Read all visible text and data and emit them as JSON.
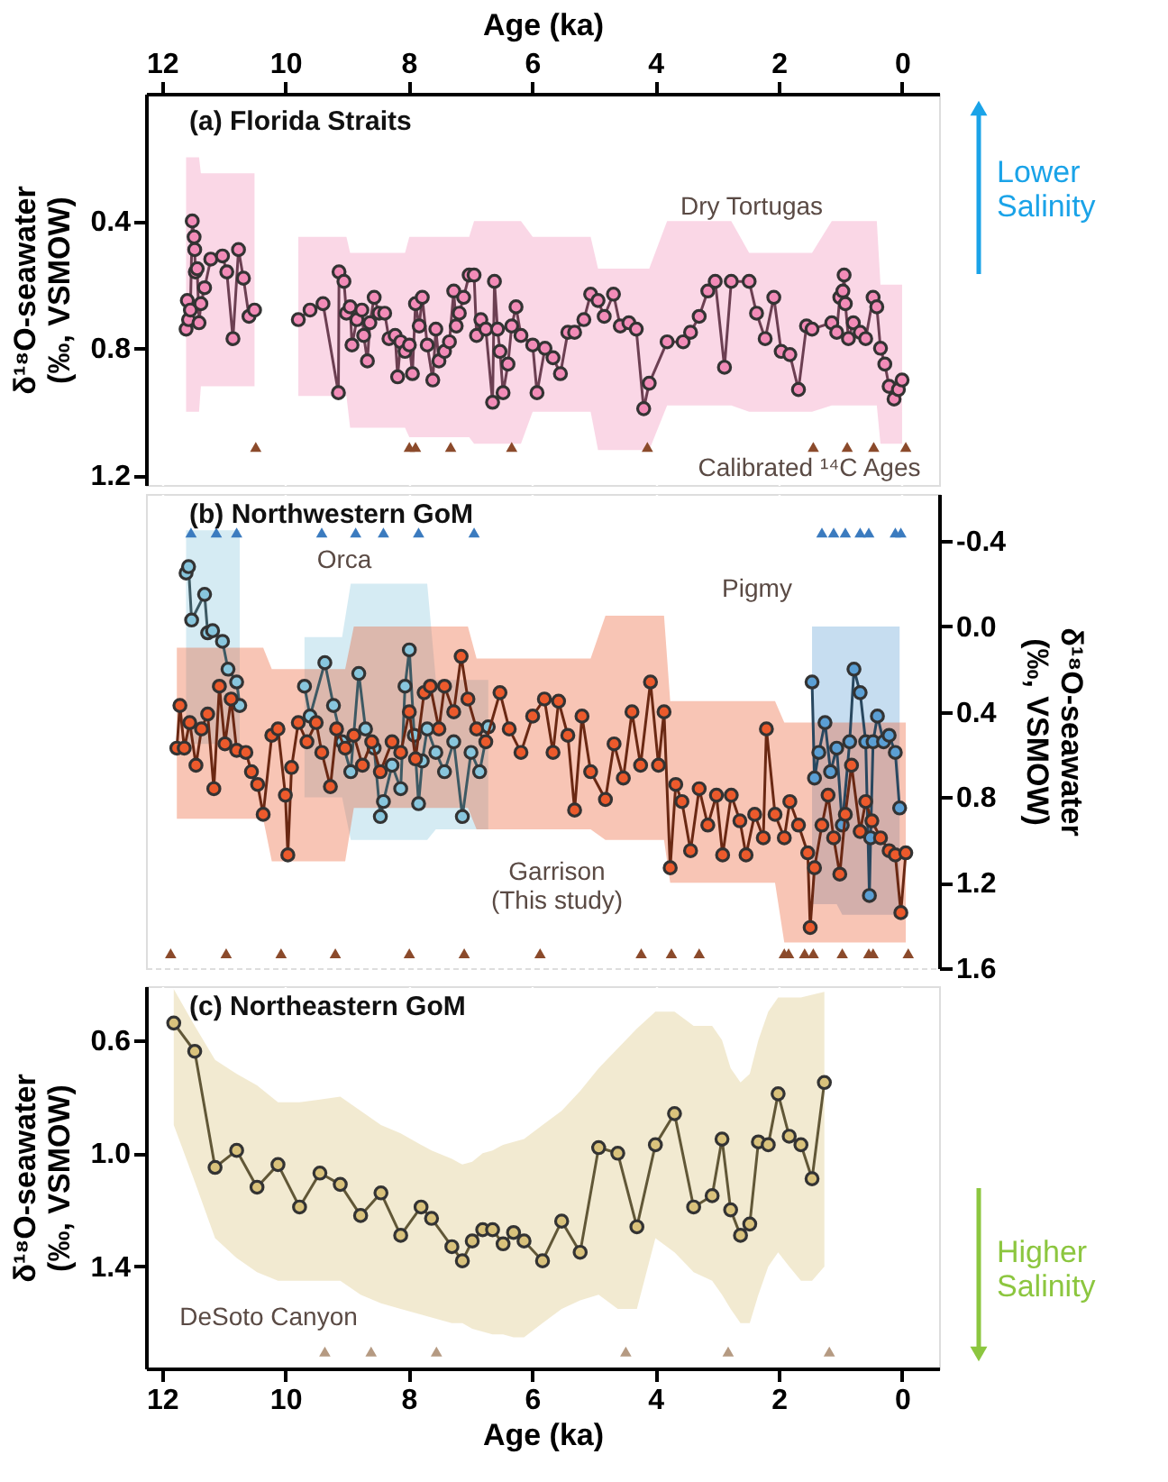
{
  "chart_data": [
    {
      "type": "line",
      "title": "(a) Florida Straits",
      "xlabel": "Age (ka)",
      "xlim": [
        12.26,
        -0.6
      ],
      "xticks": [
        12,
        10,
        8,
        6,
        4,
        2,
        0
      ],
      "ylabel": "δ¹⁸O-seawater\n(‰, VSMOW)",
      "ylim": [
        1.23,
        0.0
      ],
      "yticks": [
        0.4,
        0.8,
        1.2
      ],
      "grid": true,
      "marker": "circle",
      "series": [
        {
          "color": "#f28cb8",
          "x": [
            11.61,
            11.59,
            11.57,
            11.54,
            11.51,
            11.48,
            11.47,
            11.46,
            11.43,
            11.4,
            11.37,
            11.31,
            11.21,
            11.02,
            10.95,
            10.85,
            10.76,
            10.68,
            10.59,
            10.5,
            10.1,
            9.79,
            9.6,
            9.39,
            9.14,
            9.13,
            9.05,
            9.01,
            8.95,
            8.92,
            8.84,
            8.76,
            8.73,
            8.67,
            8.63,
            8.56,
            8.48,
            8.39,
            8.32,
            8.22,
            8.18,
            8.13,
            8.06,
            7.99,
            7.94,
            7.89,
            7.83,
            7.78,
            7.7,
            7.61,
            7.56,
            7.51,
            7.42,
            7.34,
            7.27,
            7.23,
            7.18,
            7.11,
            7.02,
            6.94,
            6.9,
            6.83,
            6.75,
            6.64,
            6.61,
            6.56,
            6.52,
            6.47,
            6.39,
            6.33,
            6.26,
            6.18,
            5.99,
            5.92,
            5.79,
            5.66,
            5.54,
            5.42,
            5.31,
            5.16,
            5.05,
            4.93,
            4.83,
            4.68,
            4.57,
            4.43,
            4.31,
            4.19,
            4.1,
            3.81,
            3.55,
            3.43,
            3.29,
            3.15,
            3.03,
            2.88,
            2.77,
            2.48,
            2.36,
            2.22,
            2.08,
            1.96,
            1.82,
            1.68,
            1.55,
            1.46,
            1.14,
            1.06,
            1.01,
            0.96,
            0.94,
            0.92,
            0.87,
            0.79,
            0.68,
            0.59,
            0.47,
            0.41,
            0.35,
            0.28,
            0.21,
            0.13,
            0.06,
            0.0
          ],
          "values": [
            0.74,
            0.65,
            0.71,
            0.68,
            0.4,
            0.45,
            0.49,
            0.56,
            0.55,
            0.72,
            0.66,
            0.61,
            0.52,
            0.51,
            0.56,
            0.77,
            0.49,
            0.58,
            0.7,
            0.68,
            null,
            0.71,
            0.68,
            0.66,
            0.94,
            0.56,
            0.59,
            0.69,
            0.67,
            0.79,
            0.71,
            0.68,
            0.76,
            0.84,
            0.72,
            0.64,
            0.69,
            0.69,
            0.77,
            0.76,
            0.89,
            0.78,
            0.81,
            0.79,
            0.88,
            0.66,
            0.73,
            0.64,
            0.79,
            0.9,
            0.74,
            0.84,
            0.81,
            0.78,
            0.62,
            0.73,
            0.69,
            0.64,
            0.57,
            0.57,
            0.76,
            0.71,
            0.74,
            0.97,
            0.59,
            0.74,
            0.81,
            0.94,
            0.85,
            0.73,
            0.67,
            0.76,
            0.79,
            0.94,
            0.8,
            0.83,
            0.88,
            0.75,
            0.75,
            0.71,
            0.63,
            0.65,
            0.7,
            0.63,
            0.73,
            0.72,
            0.74,
            0.99,
            0.91,
            0.78,
            0.78,
            0.75,
            0.7,
            0.62,
            0.59,
            0.86,
            0.59,
            0.59,
            0.69,
            0.77,
            0.64,
            0.81,
            0.82,
            0.93,
            0.73,
            0.74,
            0.72,
            0.75,
            0.64,
            0.62,
            0.57,
            0.66,
            0.77,
            0.72,
            0.75,
            0.77,
            0.64,
            0.67,
            0.8,
            0.85,
            0.92,
            0.96,
            0.93,
            0.9
          ],
          "lower": [
            0.2,
            0.2,
            0.2,
            0.2,
            0.2,
            0.2,
            0.2,
            0.2,
            0.2,
            0.2,
            0.25,
            0.25,
            0.25,
            0.25,
            0.25,
            0.25,
            0.25,
            0.25,
            0.25,
            0.25,
            null,
            0.45,
            0.45,
            0.45,
            0.45,
            0.45,
            0.45,
            0.45,
            0.5,
            0.5,
            0.5,
            0.5,
            0.5,
            0.5,
            0.5,
            0.5,
            0.5,
            0.5,
            0.5,
            0.5,
            0.5,
            0.5,
            0.5,
            0.45,
            0.45,
            0.45,
            0.45,
            0.45,
            0.45,
            0.45,
            0.45,
            0.45,
            0.45,
            0.45,
            0.45,
            0.45,
            0.45,
            0.45,
            0.45,
            0.4,
            0.4,
            0.4,
            0.4,
            0.4,
            0.4,
            0.4,
            0.4,
            0.4,
            0.4,
            0.4,
            0.4,
            0.4,
            0.45,
            0.45,
            0.45,
            0.45,
            0.45,
            0.45,
            0.45,
            0.45,
            0.45,
            0.55,
            0.55,
            0.55,
            0.55,
            0.55,
            0.55,
            0.55,
            0.55,
            0.4,
            0.4,
            0.4,
            0.4,
            0.4,
            0.4,
            0.4,
            0.4,
            0.5,
            0.5,
            0.5,
            0.5,
            0.5,
            0.5,
            0.5,
            0.5,
            0.5,
            0.4,
            0.4,
            0.4,
            0.4,
            0.4,
            0.4,
            0.4,
            0.4,
            0.4,
            0.4,
            0.4,
            0.4,
            0.6,
            0.6,
            0.6,
            0.6,
            0.6,
            0.6
          ],
          "upper": [
            1.0,
            1.0,
            1.0,
            1.0,
            1.0,
            1.0,
            1.0,
            1.0,
            1.0,
            1.0,
            0.92,
            0.92,
            0.92,
            0.92,
            0.92,
            0.92,
            0.92,
            0.92,
            0.92,
            0.92,
            null,
            0.95,
            0.95,
            0.95,
            0.95,
            0.95,
            0.95,
            0.95,
            1.05,
            1.05,
            1.05,
            1.05,
            1.05,
            1.05,
            1.05,
            1.05,
            1.05,
            1.05,
            1.05,
            1.05,
            1.05,
            1.05,
            1.05,
            1.08,
            1.08,
            1.08,
            1.08,
            1.08,
            1.08,
            1.08,
            1.08,
            1.08,
            1.08,
            1.08,
            1.08,
            1.08,
            1.08,
            1.08,
            1.08,
            1.1,
            1.1,
            1.1,
            1.1,
            1.1,
            1.1,
            1.1,
            1.1,
            1.1,
            1.1,
            1.1,
            1.1,
            1.1,
            1.0,
            1.0,
            1.0,
            1.0,
            1.0,
            1.0,
            1.0,
            1.0,
            1.0,
            1.12,
            1.12,
            1.12,
            1.12,
            1.12,
            1.12,
            1.12,
            1.12,
            0.98,
            0.98,
            0.98,
            0.98,
            0.98,
            0.98,
            0.98,
            0.98,
            1.0,
            1.0,
            1.0,
            1.0,
            1.0,
            1.0,
            1.0,
            1.0,
            1.0,
            0.98,
            0.98,
            0.98,
            0.98,
            0.98,
            0.98,
            0.98,
            0.98,
            0.98,
            0.98,
            0.98,
            0.98,
            1.1,
            1.1,
            1.1,
            1.1,
            1.1,
            1.1
          ]
        },
        {
          "type": "scatter",
          "marker": "triangle",
          "color": "#8b4a2b",
          "x": [
            10.48,
            7.99,
            7.89,
            7.32,
            6.33,
            4.13,
            1.44,
            0.89,
            0.46,
            -0.06
          ],
          "values": [
            1.11,
            1.11,
            1.11,
            1.11,
            1.11,
            1.11,
            1.11,
            1.11,
            1.11,
            1.11
          ]
        }
      ],
      "annotations": [
        "Dry Tortugas",
        "Calibrated ¹⁴C Ages",
        "Lower\nSalinity"
      ]
    },
    {
      "type": "line",
      "title": "(b) Northwestern GoM",
      "xlim": [
        12.26,
        -0.6
      ],
      "xticks": [
        12,
        10,
        8,
        6,
        4,
        2,
        0
      ],
      "tick_labels": "y",
      "ylabel": "δ¹⁸O-seawater\n(‰, VSMOW)",
      "ylim": [
        1.6,
        -0.62
      ],
      "yticks": [
        -0.4,
        {
          "value": 0,
          "label": "0.0"
        },
        0.4,
        0.8,
        1.2,
        1.6
      ],
      "grid": true,
      "marker": "circle",
      "series": [
        {
          "color": "#88c6dd",
          "x": [
            11.61,
            11.57,
            11.52,
            11.31,
            11.26,
            11.18,
            11.02,
            10.93,
            10.79,
            10.74,
            10.3,
            9.69,
            9.6,
            9.36,
            9.22,
            9.08,
            8.94,
            8.81,
            8.7,
            8.56,
            8.46,
            8.41,
            8.27,
            8.13,
            8.06,
            7.99,
            7.91,
            7.84,
            7.78,
            7.7,
            7.56,
            7.42,
            7.27,
            7.13,
            6.99,
            6.85,
            6.71
          ],
          "values": [
            -0.25,
            -0.28,
            -0.03,
            -0.15,
            0.03,
            0.02,
            0.07,
            0.2,
            0.26,
            0.37,
            null,
            0.28,
            0.42,
            0.17,
            0.37,
            0.54,
            0.68,
            0.22,
            0.48,
            0.57,
            0.89,
            0.82,
            0.65,
            0.76,
            0.28,
            0.11,
            0.51,
            0.83,
            0.63,
            0.48,
            0.59,
            0.68,
            0.54,
            0.89,
            0.59,
            0.68,
            0.47
          ],
          "lower": [
            -0.45,
            -0.45,
            -0.45,
            -0.45,
            -0.45,
            -0.45,
            -0.45,
            -0.45,
            -0.45,
            -0.45,
            null,
            0.05,
            0.05,
            0.05,
            0.05,
            0.05,
            -0.2,
            -0.2,
            -0.2,
            -0.2,
            -0.2,
            -0.2,
            -0.2,
            -0.2,
            -0.2,
            -0.2,
            -0.2,
            -0.2,
            -0.2,
            -0.2,
            0.25,
            0.25,
            0.25,
            0.25,
            0.25,
            0.25,
            0.25
          ],
          "upper": [
            0.55,
            0.55,
            0.55,
            0.55,
            0.55,
            0.55,
            0.55,
            0.55,
            0.55,
            0.55,
            null,
            0.8,
            0.8,
            0.8,
            0.8,
            0.8,
            1.0,
            1.0,
            1.0,
            1.0,
            1.0,
            1.0,
            1.0,
            1.0,
            1.0,
            1.0,
            1.0,
            1.0,
            1.0,
            1.0,
            0.95,
            0.95,
            0.95,
            0.95,
            0.95,
            0.95,
            0.95
          ]
        },
        {
          "color": "#5b9fd4",
          "x": [
            1.46,
            1.42,
            1.35,
            1.25,
            1.16,
            1.06,
            0.97,
            0.85,
            0.78,
            0.68,
            0.59,
            0.53,
            0.51,
            0.47,
            0.4,
            0.3,
            0.21,
            0.11,
            0.04
          ],
          "values": [
            0.26,
            0.71,
            0.59,
            0.45,
            0.68,
            0.57,
            0.93,
            0.54,
            0.2,
            0.31,
            0.54,
            1.26,
            0.99,
            0.54,
            0.42,
            0.54,
            0.51,
            0.59,
            0.85
          ],
          "lower": [
            0.0,
            0.0,
            0.0,
            0.0,
            0.0,
            0.0,
            0.0,
            0.0,
            0.0,
            0.0,
            0.0,
            0.0,
            0.0,
            0.0,
            0.0,
            0.0,
            0.0,
            0.0,
            0.0
          ],
          "upper": [
            1.3,
            1.3,
            1.3,
            1.3,
            1.3,
            1.3,
            1.35,
            1.35,
            1.35,
            1.35,
            1.35,
            1.35,
            1.35,
            1.35,
            1.35,
            1.35,
            1.35,
            1.35,
            1.35
          ]
        },
        {
          "color": "#ec5a2c",
          "x": [
            11.76,
            11.71,
            11.64,
            11.55,
            11.45,
            11.36,
            11.26,
            11.16,
            11.07,
            10.98,
            10.88,
            10.79,
            10.64,
            10.55,
            10.45,
            10.36,
            10.22,
            10.12,
            10.0,
            9.96,
            9.9,
            9.79,
            9.65,
            9.5,
            9.41,
            9.27,
            9.17,
            9.03,
            8.89,
            8.75,
            8.6,
            8.46,
            8.27,
            8.13,
            7.99,
            7.89,
            7.75,
            7.65,
            7.51,
            7.42,
            7.27,
            7.15,
            7.04,
            6.9,
            6.75,
            6.52,
            6.37,
            6.18,
            5.99,
            5.8,
            5.66,
            5.57,
            5.42,
            5.31,
            5.19,
            5.05,
            4.81,
            4.67,
            4.52,
            4.38,
            4.24,
            4.08,
            3.95,
            3.86,
            3.76,
            3.67,
            3.57,
            3.43,
            3.29,
            3.15,
            3.01,
            2.91,
            2.77,
            2.63,
            2.53,
            2.39,
            2.25,
            2.2,
            2.06,
            1.91,
            1.82,
            1.68,
            1.53,
            1.49,
            1.42,
            1.3,
            1.2,
            1.11,
            1.01,
            0.92,
            0.82,
            0.68,
            0.59,
            0.49,
            0.35,
            0.21,
            0.11,
            0.02,
            -0.06
          ],
          "values": [
            0.57,
            0.37,
            0.57,
            0.45,
            0.65,
            0.48,
            0.41,
            0.76,
            0.28,
            0.55,
            0.34,
            0.58,
            0.59,
            0.68,
            0.74,
            0.88,
            0.51,
            0.48,
            0.79,
            1.07,
            0.66,
            0.45,
            0.54,
            0.45,
            0.59,
            0.75,
            0.48,
            0.57,
            0.51,
            0.65,
            0.54,
            0.68,
            0.54,
            0.59,
            0.4,
            0.62,
            0.31,
            0.28,
            0.48,
            0.28,
            0.4,
            0.14,
            0.34,
            0.48,
            0.54,
            0.31,
            0.48,
            0.59,
            0.42,
            0.34,
            0.59,
            0.35,
            0.51,
            0.86,
            0.42,
            0.68,
            0.81,
            0.55,
            0.71,
            0.4,
            0.65,
            0.26,
            0.65,
            0.4,
            1.13,
            0.74,
            0.82,
            1.05,
            0.76,
            0.93,
            0.79,
            1.07,
            0.79,
            0.91,
            1.07,
            0.88,
            0.99,
            0.48,
            0.88,
            0.99,
            0.82,
            0.93,
            1.06,
            1.41,
            1.13,
            0.93,
            0.79,
            0.99,
            1.16,
            0.88,
            0.65,
            0.96,
            0.82,
            0.91,
            0.99,
            1.05,
            1.07,
            1.34,
            1.06
          ],
          "lower": [
            0.1,
            0.1,
            0.1,
            0.1,
            0.1,
            0.1,
            0.1,
            0.1,
            0.1,
            0.1,
            0.1,
            0.1,
            0.1,
            0.1,
            0.1,
            0.1,
            0.2,
            0.2,
            0.2,
            0.2,
            0.2,
            0.2,
            0.2,
            0.2,
            0.2,
            0.2,
            0.2,
            0.2,
            0.0,
            0.0,
            0.0,
            0.0,
            0.0,
            0.0,
            0.0,
            0.0,
            0.0,
            0.0,
            0.0,
            0.0,
            0.0,
            0.0,
            0.0,
            0.15,
            0.15,
            0.15,
            0.15,
            0.15,
            0.15,
            0.15,
            0.15,
            0.15,
            0.15,
            0.15,
            0.15,
            0.15,
            -0.05,
            -0.05,
            -0.05,
            -0.05,
            -0.05,
            -0.05,
            -0.05,
            -0.05,
            0.35,
            0.35,
            0.35,
            0.35,
            0.35,
            0.35,
            0.35,
            0.35,
            0.35,
            0.35,
            0.35,
            0.35,
            0.35,
            0.35,
            0.35,
            0.45,
            0.45,
            0.45,
            0.45,
            0.45,
            0.45,
            0.45,
            0.45,
            0.45,
            0.45,
            0.45,
            0.45,
            0.45,
            0.45,
            0.45,
            0.45,
            0.45,
            0.45,
            0.45,
            0.45
          ],
          "upper": [
            0.9,
            0.9,
            0.9,
            0.9,
            0.9,
            0.9,
            0.9,
            0.9,
            0.9,
            0.9,
            0.9,
            0.9,
            0.9,
            0.9,
            0.9,
            0.9,
            1.1,
            1.1,
            1.1,
            1.1,
            1.1,
            1.1,
            1.1,
            1.1,
            1.1,
            1.1,
            1.1,
            1.1,
            0.85,
            0.85,
            0.85,
            0.85,
            0.85,
            0.85,
            0.85,
            0.85,
            0.85,
            0.85,
            0.85,
            0.85,
            0.85,
            0.85,
            0.85,
            0.95,
            0.95,
            0.95,
            0.95,
            0.95,
            0.95,
            0.95,
            0.95,
            0.95,
            0.95,
            0.95,
            0.95,
            0.95,
            1.0,
            1.0,
            1.0,
            1.0,
            1.0,
            1.0,
            1.0,
            1.0,
            1.2,
            1.2,
            1.2,
            1.2,
            1.2,
            1.2,
            1.2,
            1.2,
            1.2,
            1.2,
            1.2,
            1.2,
            1.2,
            1.2,
            1.2,
            1.48,
            1.48,
            1.48,
            1.48,
            1.48,
            1.48,
            1.48,
            1.48,
            1.48,
            1.48,
            1.48,
            1.48,
            1.48,
            1.48,
            1.48,
            1.48,
            1.48,
            1.48,
            1.48,
            1.48
          ]
        },
        {
          "type": "scatter",
          "marker": "triangle",
          "color": "#8b4a2b",
          "x": [
            11.86,
            10.96,
            10.07,
            9.19,
            7.99,
            7.1,
            5.87,
            4.23,
            3.74,
            3.29,
            1.91,
            1.84,
            1.58,
            1.44,
            0.97,
            0.54,
            0.47,
            -0.1
          ],
          "values": [
            1.53,
            1.53,
            1.53,
            1.53,
            1.53,
            1.53,
            1.53,
            1.53,
            1.53,
            1.53,
            1.53,
            1.53,
            1.53,
            1.53,
            1.53,
            1.53,
            1.53,
            1.53
          ]
        },
        {
          "type": "scatter",
          "marker": "triangle",
          "color": "#3b7bbf",
          "x": [
            11.53,
            11.12,
            10.79,
            9.41,
            8.86,
            8.41,
            7.84,
            6.94,
            1.3,
            1.11,
            0.92,
            0.68,
            0.54,
            0.11,
            0.02
          ],
          "values": [
            -0.44,
            -0.44,
            -0.44,
            -0.44,
            -0.44,
            -0.44,
            -0.44,
            -0.44,
            -0.44,
            -0.44,
            -0.44,
            -0.44,
            -0.44,
            -0.44,
            -0.44
          ]
        }
      ],
      "annotations": [
        "Orca",
        "Pigmy",
        "Garrison\n(This study)"
      ]
    },
    {
      "type": "line",
      "title": "(c) Northeastern GoM",
      "xlabel": "Age (ka)",
      "xlim": [
        12.26,
        -0.6
      ],
      "xticks": [
        12,
        10,
        8,
        6,
        4,
        2,
        0
      ],
      "ylabel": "δ¹⁸O-seawater\n(‰, VSMOW)",
      "ylim": [
        1.76,
        0.41
      ],
      "yticks": [
        0.6,
        {
          "value": 1,
          "label": "1.0"
        },
        1.4
      ],
      "grid": true,
      "marker": "circle",
      "series": [
        {
          "color": "#d9c27c",
          "x": [
            11.81,
            11.47,
            11.14,
            10.79,
            10.46,
            10.12,
            9.77,
            9.44,
            9.11,
            8.78,
            8.45,
            8.13,
            7.8,
            7.63,
            7.3,
            7.13,
            6.97,
            6.8,
            6.64,
            6.47,
            6.3,
            6.13,
            5.83,
            5.52,
            5.22,
            4.92,
            4.61,
            4.3,
            4.0,
            3.69,
            3.38,
            3.08,
            2.92,
            2.78,
            2.62,
            2.47,
            2.33,
            2.17,
            2.01,
            1.83,
            1.64,
            1.46,
            1.26
          ],
          "values": [
            0.54,
            0.64,
            1.05,
            0.99,
            1.12,
            1.04,
            1.19,
            1.07,
            1.11,
            1.22,
            1.14,
            1.29,
            1.19,
            1.23,
            1.33,
            1.38,
            1.31,
            1.27,
            1.27,
            1.32,
            1.28,
            1.31,
            1.38,
            1.24,
            1.35,
            0.98,
            1.0,
            1.26,
            0.97,
            0.86,
            1.19,
            1.15,
            0.95,
            1.2,
            1.29,
            1.25,
            0.96,
            0.97,
            0.79,
            0.94,
            0.97,
            1.09,
            0.75
          ],
          "lower": [
            0.42,
            0.55,
            0.67,
            0.72,
            0.76,
            0.82,
            0.82,
            0.81,
            0.8,
            0.85,
            0.9,
            0.93,
            0.97,
            0.99,
            1.02,
            1.04,
            1.03,
            1.0,
            0.99,
            0.97,
            0.96,
            0.95,
            0.9,
            0.85,
            0.78,
            0.7,
            0.63,
            0.56,
            0.5,
            0.5,
            0.55,
            0.55,
            0.6,
            0.7,
            0.75,
            0.72,
            0.6,
            0.5,
            0.45,
            0.45,
            0.45,
            0.44,
            0.43
          ],
          "upper": [
            0.9,
            1.1,
            1.3,
            1.37,
            1.42,
            1.45,
            1.45,
            1.45,
            1.45,
            1.5,
            1.53,
            1.55,
            1.57,
            1.58,
            1.6,
            1.6,
            1.62,
            1.63,
            1.64,
            1.64,
            1.65,
            1.65,
            1.6,
            1.55,
            1.52,
            1.5,
            1.55,
            1.55,
            1.3,
            1.35,
            1.42,
            1.45,
            1.5,
            1.55,
            1.6,
            1.6,
            1.5,
            1.4,
            1.35,
            1.4,
            1.45,
            1.45,
            1.4
          ]
        },
        {
          "type": "scatter",
          "marker": "triangle",
          "color": "#b59a82",
          "x": [
            9.36,
            8.61,
            7.55,
            4.48,
            2.82,
            1.18
          ],
          "values": [
            1.7,
            1.7,
            1.7,
            1.7,
            1.7,
            1.7
          ]
        }
      ],
      "annotations": [
        "DeSoto Canyon",
        "Higher\nSalinity"
      ]
    }
  ]
}
